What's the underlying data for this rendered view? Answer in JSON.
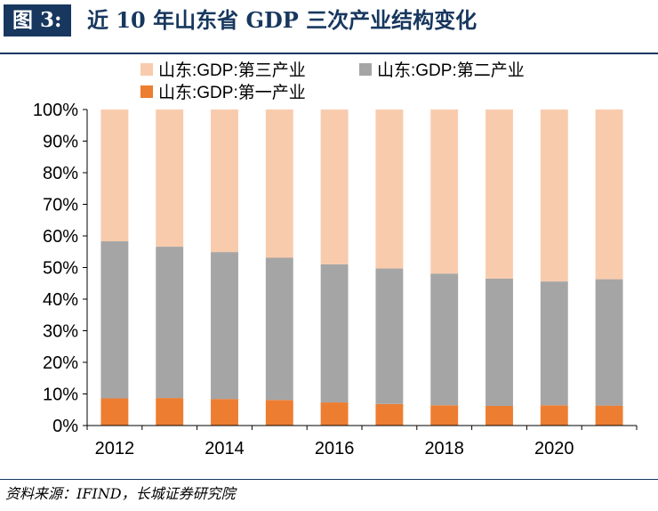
{
  "header": {
    "figure_label": "图 3:",
    "title": "近 10 年山东省 GDP 三次产业结构变化"
  },
  "source": "资料来源：IFIND，长城证券研究院",
  "chart_data": {
    "type": "bar",
    "stacked": true,
    "years": [
      2012,
      2013,
      2014,
      2015,
      2016,
      2017,
      2018,
      2019,
      2020,
      2021
    ],
    "x_tick_labels": [
      "2012",
      "2014",
      "2016",
      "2018",
      "2020"
    ],
    "series": [
      {
        "name": "山东:GDP:第一产业",
        "color": "#ed7d31",
        "values": [
          8.6,
          8.7,
          8.4,
          8.1,
          7.3,
          6.8,
          6.4,
          6.2,
          6.4,
          6.3
        ]
      },
      {
        "name": "山东:GDP:第二产业",
        "color": "#a5a5a5",
        "values": [
          49.7,
          47.9,
          46.5,
          45.0,
          43.7,
          42.9,
          41.7,
          40.3,
          39.2,
          40.0
        ]
      },
      {
        "name": "山东:GDP:第三产业",
        "color": "#f8cbad",
        "values": [
          41.7,
          43.4,
          45.1,
          46.9,
          49.0,
          50.3,
          51.9,
          53.5,
          54.4,
          53.7
        ]
      }
    ],
    "ylim": [
      0,
      100
    ],
    "y_ticks": [
      0,
      10,
      20,
      30,
      40,
      50,
      60,
      70,
      80,
      90,
      100
    ],
    "y_tick_format": "%",
    "grid": false,
    "legend": "top"
  }
}
